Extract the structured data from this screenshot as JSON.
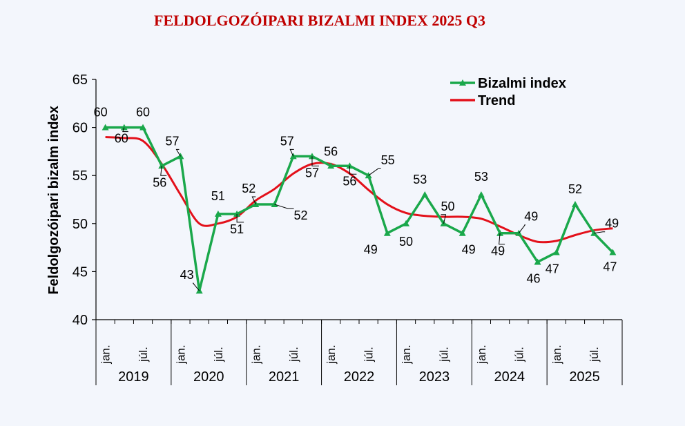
{
  "colors": {
    "index": "#1aa84b",
    "trend": "#e3101a",
    "title": "#c00000",
    "axis": "#000000"
  },
  "chart_data": {
    "type": "line",
    "title": "FELDOLGOZÓIPARI BIZALMI INDEX 2025 Q3",
    "ylabel": "Feldolgozóipari bizalm index",
    "ylim": [
      40,
      65
    ],
    "yticks": [
      40,
      45,
      50,
      55,
      60,
      65
    ],
    "years": [
      "2019",
      "2020",
      "2021",
      "2022",
      "2023",
      "2024",
      "2025"
    ],
    "month_labels": [
      "jan.",
      "júl.",
      "jan.",
      "júl.",
      "jan.",
      "júl.",
      "jan.",
      "júl.",
      "jan.",
      "júl.",
      "jan.",
      "júl.",
      "jan.",
      "júl."
    ],
    "legend": [
      "Bizalmi index",
      "Trend"
    ],
    "series": [
      {
        "name": "Bizalmi index",
        "values": [
          60,
          60,
          60,
          56,
          57,
          43,
          51,
          51,
          52,
          52,
          57,
          57,
          56,
          56,
          55,
          49,
          50,
          53,
          50,
          49,
          53,
          49,
          49,
          46,
          47,
          52,
          49,
          47
        ],
        "labels": [
          "60",
          "60",
          "60",
          "56",
          "57",
          "43",
          "51",
          "51",
          "52",
          "52",
          "57",
          "57",
          "56",
          "56",
          "55",
          "49",
          "50",
          "53",
          "50",
          "49",
          "53",
          "49",
          "49",
          "46",
          "47",
          "52",
          "49",
          "47"
        ]
      },
      {
        "name": "Trend",
        "values": [
          59.0,
          58.9,
          58.6,
          56.2,
          53.0,
          50.0,
          50.0,
          50.7,
          52.4,
          53.6,
          55.2,
          56.2,
          56.2,
          55.2,
          53.5,
          52.0,
          51.1,
          50.8,
          50.7,
          50.7,
          50.5,
          49.7,
          48.8,
          48.1,
          48.2,
          48.8,
          49.3,
          49.5
        ]
      }
    ]
  }
}
